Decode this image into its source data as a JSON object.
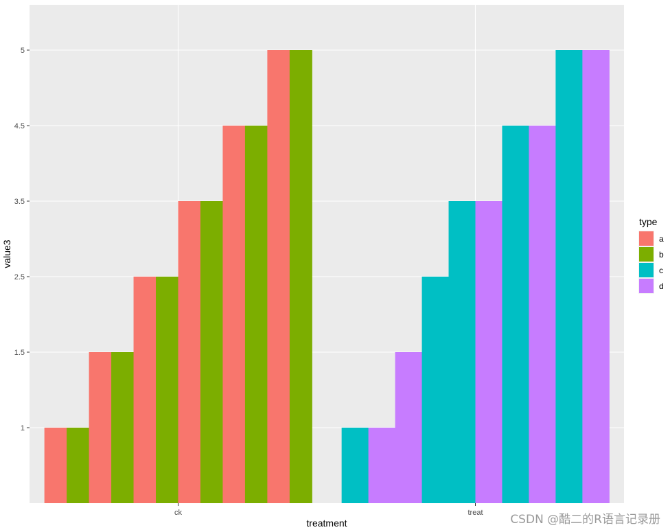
{
  "chart_data": {
    "type": "bar",
    "xlabel": "treatment",
    "ylabel": "value3",
    "categories": [
      "ck",
      "treat"
    ],
    "y_ticks": [
      "1",
      "1.5",
      "2.5",
      "3.5",
      "4.5",
      "5"
    ],
    "legend": {
      "title": "type",
      "placement": "right",
      "entries": [
        {
          "label": "a",
          "color": "#F8766D"
        },
        {
          "label": "b",
          "color": "#7CAE00"
        },
        {
          "label": "c",
          "color": "#00BFC4"
        },
        {
          "label": "d",
          "color": "#C77CFF"
        }
      ]
    },
    "bars": [
      {
        "category": "ck",
        "type": "a",
        "value": "1"
      },
      {
        "category": "ck",
        "type": "b",
        "value": "1"
      },
      {
        "category": "ck",
        "type": "a",
        "value": "1.5"
      },
      {
        "category": "ck",
        "type": "b",
        "value": "1.5"
      },
      {
        "category": "ck",
        "type": "a",
        "value": "2.5"
      },
      {
        "category": "ck",
        "type": "b",
        "value": "2.5"
      },
      {
        "category": "ck",
        "type": "a",
        "value": "3.5"
      },
      {
        "category": "ck",
        "type": "b",
        "value": "3.5"
      },
      {
        "category": "ck",
        "type": "a",
        "value": "4.5"
      },
      {
        "category": "ck",
        "type": "b",
        "value": "4.5"
      },
      {
        "category": "ck",
        "type": "a",
        "value": "5"
      },
      {
        "category": "ck",
        "type": "b",
        "value": "5"
      },
      {
        "category": "treat",
        "type": "c",
        "value": "1"
      },
      {
        "category": "treat",
        "type": "d",
        "value": "1"
      },
      {
        "category": "treat",
        "type": "d",
        "value": "1.5"
      },
      {
        "category": "treat",
        "type": "c",
        "value": "2.5"
      },
      {
        "category": "treat",
        "type": "c",
        "value": "3.5"
      },
      {
        "category": "treat",
        "type": "d",
        "value": "3.5"
      },
      {
        "category": "treat",
        "type": "c",
        "value": "4.5"
      },
      {
        "category": "treat",
        "type": "d",
        "value": "4.5"
      },
      {
        "category": "treat",
        "type": "c",
        "value": "5"
      },
      {
        "category": "treat",
        "type": "d",
        "value": "5"
      }
    ],
    "panel_background": "#EBEBEB",
    "grid": true
  },
  "watermark": "CSDN @酷二的R语言记录册"
}
